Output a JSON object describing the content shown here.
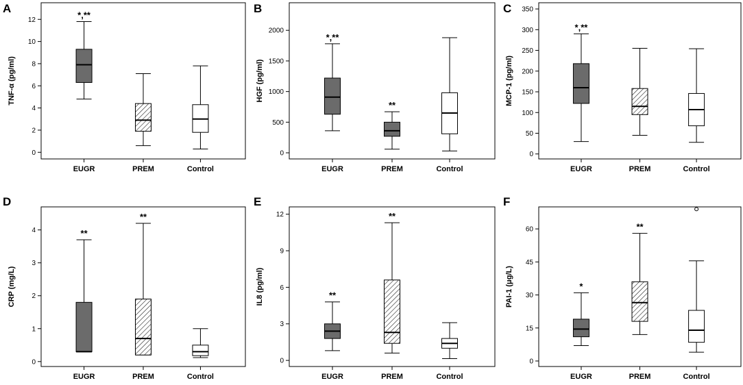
{
  "chart_data": [
    {
      "type": "box",
      "panel": "A",
      "ylabel": "TNF-α (pg/ml)",
      "ylim": [
        -0.6,
        13.5
      ],
      "yticks": [
        0,
        2,
        4,
        6,
        8,
        10,
        12
      ],
      "categories": [
        "EUGR",
        "PREM",
        "Control"
      ],
      "boxes": [
        {
          "min": 4.8,
          "q1": 6.3,
          "median": 7.9,
          "q3": 9.3,
          "max": 11.8,
          "fill": "dark",
          "annotation": "*,**"
        },
        {
          "min": 0.6,
          "q1": 1.9,
          "median": 2.9,
          "q3": 4.4,
          "max": 7.1,
          "fill": "hatch",
          "annotation": ""
        },
        {
          "min": 0.3,
          "q1": 1.8,
          "median": 3.0,
          "q3": 4.3,
          "max": 7.8,
          "fill": "white",
          "annotation": ""
        }
      ],
      "outliers": []
    },
    {
      "type": "box",
      "panel": "B",
      "ylabel": "HGF (pg/ml)",
      "ylim": [
        -100,
        2450
      ],
      "yticks": [
        0,
        500,
        1000,
        1500,
        2000
      ],
      "categories": [
        "EUGR",
        "PREM",
        "Control"
      ],
      "boxes": [
        {
          "min": 360,
          "q1": 630,
          "median": 910,
          "q3": 1220,
          "max": 1780,
          "fill": "dark",
          "annotation": "*,**"
        },
        {
          "min": 60,
          "q1": 270,
          "median": 360,
          "q3": 500,
          "max": 670,
          "fill": "dark",
          "annotation": "**"
        },
        {
          "min": 30,
          "q1": 310,
          "median": 650,
          "q3": 980,
          "max": 1880,
          "fill": "white",
          "annotation": ""
        }
      ],
      "outliers": []
    },
    {
      "type": "box",
      "panel": "C",
      "ylabel": "MCP-1 (pg/ml)",
      "ylim": [
        -12,
        365
      ],
      "yticks": [
        0,
        50,
        100,
        150,
        200,
        250,
        300,
        350
      ],
      "categories": [
        "EUGR",
        "PREM",
        "Control"
      ],
      "boxes": [
        {
          "min": 30,
          "q1": 122,
          "median": 160,
          "q3": 218,
          "max": 290,
          "fill": "dark",
          "annotation": "*,**"
        },
        {
          "min": 45,
          "q1": 95,
          "median": 115,
          "q3": 158,
          "max": 255,
          "fill": "hatch",
          "annotation": ""
        },
        {
          "min": 28,
          "q1": 68,
          "median": 107,
          "q3": 146,
          "max": 254,
          "fill": "white",
          "annotation": ""
        }
      ],
      "outliers": []
    },
    {
      "type": "box",
      "panel": "D",
      "ylabel": "CRP (mg/L)",
      "ylim": [
        -0.15,
        4.7
      ],
      "yticks": [
        0,
        1,
        2,
        3,
        4
      ],
      "categories": [
        "EUGR",
        "PREM",
        "Control"
      ],
      "boxes": [
        {
          "min": 0.3,
          "q1": 0.3,
          "median": 0.3,
          "q3": 1.8,
          "max": 3.7,
          "fill": "dark",
          "annotation": "**"
        },
        {
          "min": 0.2,
          "q1": 0.2,
          "median": 0.7,
          "q3": 1.9,
          "max": 4.2,
          "fill": "hatch",
          "annotation": "**"
        },
        {
          "min": 0.12,
          "q1": 0.18,
          "median": 0.3,
          "q3": 0.5,
          "max": 1.0,
          "fill": "white",
          "annotation": ""
        }
      ],
      "outliers": []
    },
    {
      "type": "box",
      "panel": "E",
      "ylabel": "IL8 (pg/ml)",
      "ylim": [
        -0.5,
        12.6
      ],
      "yticks": [
        0,
        3,
        6,
        9,
        12
      ],
      "categories": [
        "EUGR",
        "PREM",
        "Control"
      ],
      "boxes": [
        {
          "min": 0.8,
          "q1": 1.8,
          "median": 2.4,
          "q3": 3.0,
          "max": 4.8,
          "fill": "dark",
          "annotation": "**"
        },
        {
          "min": 0.6,
          "q1": 1.4,
          "median": 2.3,
          "q3": 6.6,
          "max": 11.3,
          "fill": "hatch",
          "annotation": "**"
        },
        {
          "min": 0.15,
          "q1": 1.0,
          "median": 1.4,
          "q3": 1.8,
          "max": 3.1,
          "fill": "white",
          "annotation": ""
        }
      ],
      "outliers": []
    },
    {
      "type": "box",
      "panel": "F",
      "ylabel": "PAI-1 (μg/L)",
      "ylim": [
        -2.5,
        70
      ],
      "yticks": [
        0,
        15,
        30,
        45,
        60
      ],
      "categories": [
        "EUGR",
        "PREM",
        "Control"
      ],
      "boxes": [
        {
          "min": 7,
          "q1": 11,
          "median": 14.5,
          "q3": 19,
          "max": 31,
          "fill": "dark",
          "annotation": "*"
        },
        {
          "min": 12,
          "q1": 18,
          "median": 26.5,
          "q3": 36,
          "max": 58,
          "fill": "hatch",
          "annotation": "**"
        },
        {
          "min": 4,
          "q1": 8.5,
          "median": 14,
          "q3": 23,
          "max": 45.5,
          "fill": "white",
          "annotation": ""
        }
      ],
      "outliers": [
        {
          "category": "Control",
          "value": 69
        }
      ]
    }
  ]
}
